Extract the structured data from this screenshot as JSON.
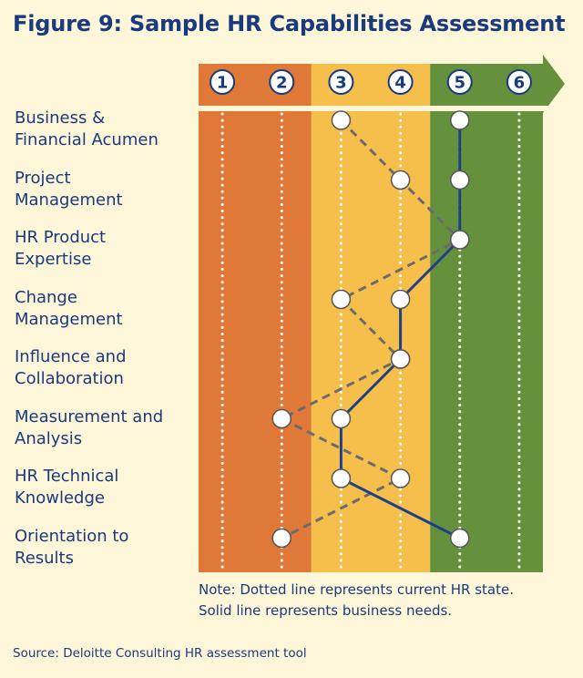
{
  "title": "Figure 9: Sample HR Capabilities Assessment",
  "note": {
    "line1": "Note: Dotted line represents current HR state.",
    "line2": "Solid line represents business needs."
  },
  "source": "Source: Deloitte Consulting HR assessment tool",
  "colors": {
    "band_low": "#e07838",
    "band_mid": "#f6bf4c",
    "band_high": "#65913d",
    "line_current": "#6b6b6b",
    "line_needs": "#1e3f8a",
    "text": "#1a3a7e",
    "background": "#fdf6d8"
  },
  "chart_data": {
    "type": "line",
    "scale": [
      1,
      2,
      3,
      4,
      5,
      6
    ],
    "scale_labels": [
      "1",
      "2",
      "3",
      "4",
      "5",
      "6"
    ],
    "categories": [
      "Business & Financial Acumen",
      "Project Management",
      "HR Product Expertise",
      "Change Management",
      "Influence and Collaboration",
      "Measurement and Analysis",
      "HR Technical Knowledge",
      "Orientation to Results"
    ],
    "category_lines": [
      [
        "Business &",
        "Financial Acumen"
      ],
      [
        "Project",
        "Management"
      ],
      [
        "HR Product",
        "Expertise"
      ],
      [
        "Change",
        "Management"
      ],
      [
        "Influence and",
        "Collaboration"
      ],
      [
        "Measurement and",
        "Analysis"
      ],
      [
        "HR Technical",
        "Knowledge"
      ],
      [
        "Orientation to",
        "Results"
      ]
    ],
    "bands": [
      {
        "from": 0.6,
        "to": 2.5,
        "color": "#e07838"
      },
      {
        "from": 2.5,
        "to": 4.5,
        "color": "#f6bf4c"
      },
      {
        "from": 4.5,
        "to": 6.4,
        "color": "#65913d"
      }
    ],
    "series": [
      {
        "style": "dotted",
        "values": [
          3,
          4,
          5,
          3,
          4,
          2,
          4,
          2
        ]
      },
      {
        "style": "solid",
        "values": [
          5,
          5,
          5,
          4,
          4,
          3,
          3,
          5
        ]
      }
    ],
    "xlim": [
      0.6,
      6.4
    ]
  }
}
